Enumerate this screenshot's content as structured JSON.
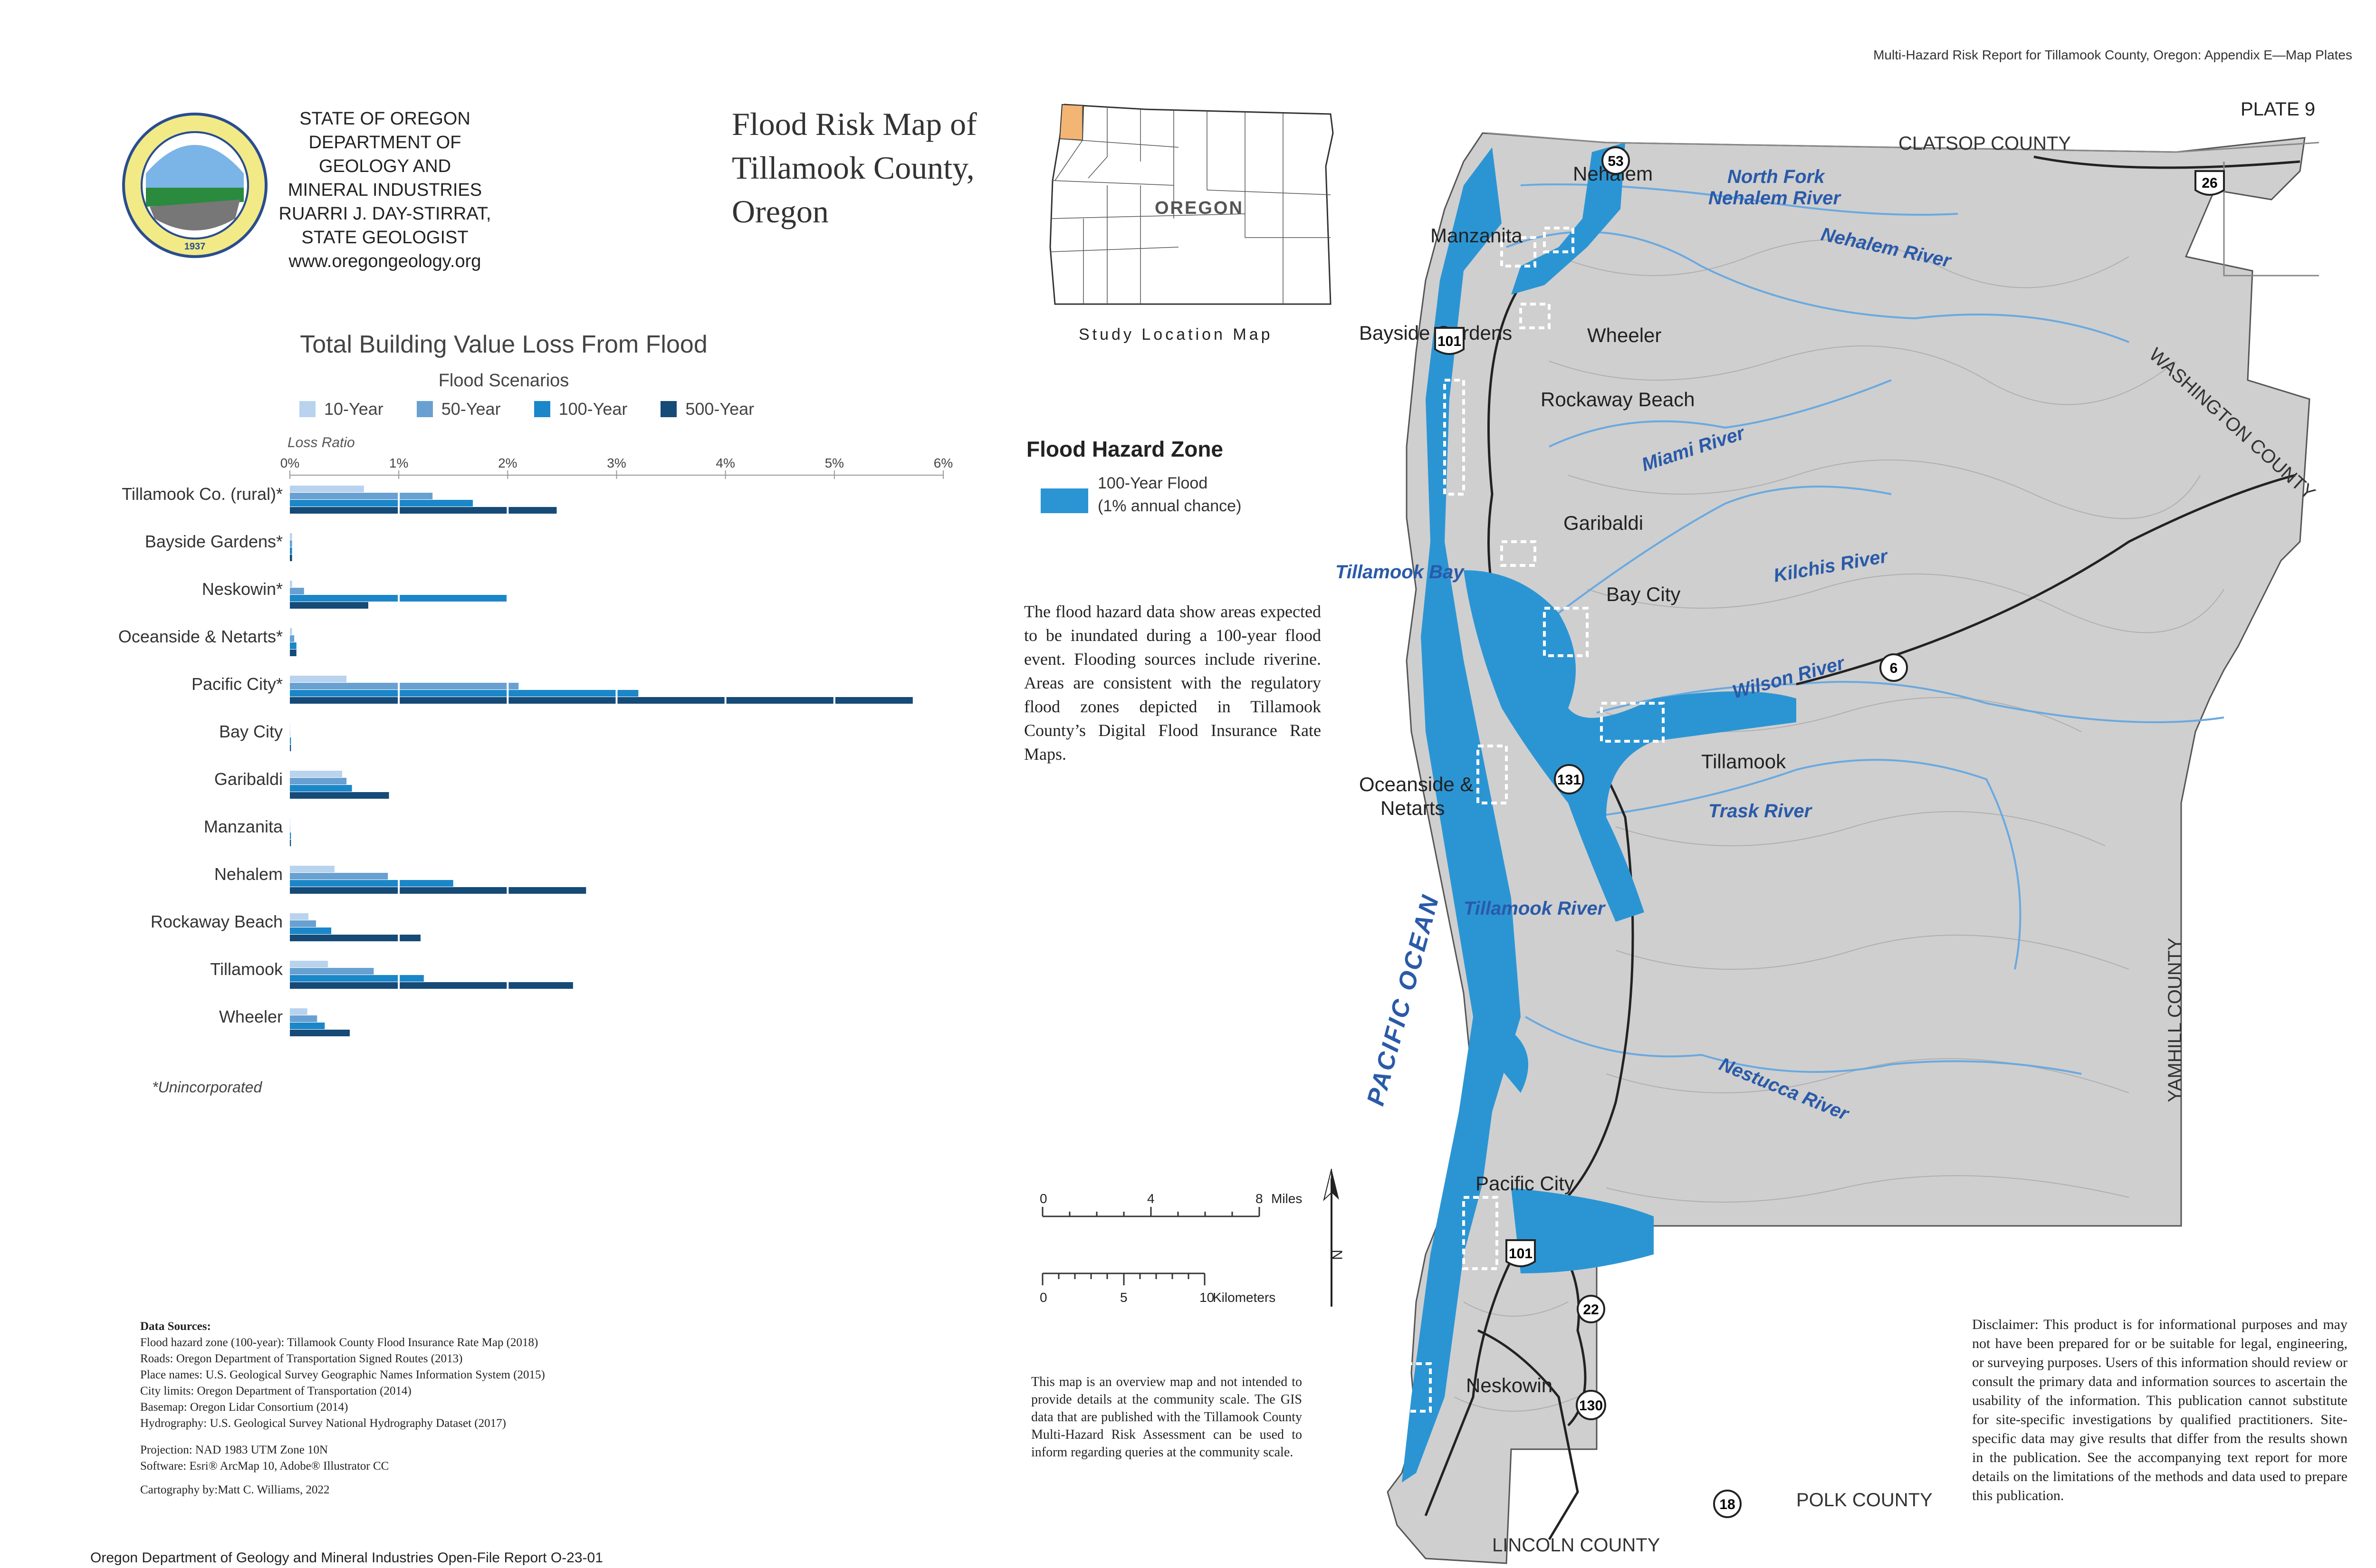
{
  "header": {
    "report_title": "Multi-Hazard Risk Report for Tillamook County, Oregon: Appendix E—Map Plates",
    "plate": "PLATE 9"
  },
  "agency": {
    "line1": "STATE OF OREGON",
    "line2": "DEPARTMENT OF GEOLOGY AND",
    "line3": "MINERAL INDUSTRIES",
    "line4": "RUARRI J. DAY-STIRRAT, STATE GEOLOGIST",
    "line5": "www.oregongeology.org",
    "seal_text": "OREGON DEPARTMENT OF GEOLOGY AND MINERAL INDUSTRIES",
    "seal_year": "1937"
  },
  "map_title": {
    "line1": "Flood Risk Map of",
    "line2": "Tillamook County,",
    "line3": "Oregon"
  },
  "study_location": {
    "state_label": "OREGON",
    "caption": "Study Location Map",
    "highlight_color": "#f3b574"
  },
  "chart_data": {
    "type": "bar",
    "orientation": "horizontal",
    "title": "Total Building Value Loss From Flood",
    "legend_title": "Flood Scenarios",
    "xlabel": "Loss Ratio",
    "x_ticks": [
      "0%",
      "1%",
      "2%",
      "3%",
      "4%",
      "5%",
      "6%"
    ],
    "xlim": [
      0,
      6
    ],
    "legend_position": "top",
    "categories": [
      "Tillamook Co. (rural)*",
      "Bayside Gardens*",
      "Neskowin*",
      "Oceanside & Netarts*",
      "Pacific City*",
      "Bay City",
      "Garibaldi",
      "Manzanita",
      "Nehalem",
      "Rockaway Beach",
      "Tillamook",
      "Wheeler"
    ],
    "series": [
      {
        "name": "10-Year",
        "color": "#b9d3ee",
        "values": [
          0.68,
          0.02,
          0.02,
          0.02,
          0.52,
          0.0,
          0.48,
          0.0,
          0.41,
          0.17,
          0.35,
          0.16
        ]
      },
      {
        "name": "50-Year",
        "color": "#68a1d1",
        "values": [
          1.31,
          0.02,
          0.13,
          0.04,
          2.1,
          0.0,
          0.52,
          0.0,
          0.9,
          0.24,
          0.77,
          0.25
        ]
      },
      {
        "name": "100-Year",
        "color": "#1b87c9",
        "values": [
          1.68,
          0.02,
          1.99,
          0.06,
          3.2,
          0.01,
          0.57,
          0.01,
          1.5,
          0.38,
          1.23,
          0.32
        ]
      },
      {
        "name": "500-Year",
        "color": "#164a77",
        "values": [
          2.45,
          0.02,
          0.72,
          0.06,
          5.72,
          0.01,
          0.91,
          0.01,
          2.72,
          1.2,
          2.6,
          0.55
        ]
      }
    ],
    "footnote": "*Unincorporated"
  },
  "flood_zone_legend": {
    "title": "Flood Hazard Zone",
    "label_line1": "100-Year Flood",
    "label_line2": "(1% annual chance)",
    "color": "#2b95d4"
  },
  "description": "The flood hazard data show areas expected to be inundated during a 100-year flood event. Flooding sources include riverine. Areas are consistent with the regulatory flood zones depicted in Tillamook County’s Digital Flood Insurance Rate Maps.",
  "scale_bar": {
    "miles_ticks": [
      "0",
      "4",
      "8"
    ],
    "miles_unit": "Miles",
    "km_ticks": [
      "0",
      "5",
      "10"
    ],
    "km_unit": "Kilometers",
    "north": "N"
  },
  "overview_note": "This map is an overview map and not intended to provide details at the community scale. The GIS data that are published with the Tillamook County Multi-Hazard Risk Assessment can be used to inform regarding queries at the community scale.",
  "disclaimer": "Disclaimer: This product is for informational purposes and may not have been prepared for or be suitable for legal, engineering, or surveying purposes. Users of this information should review or consult the primary data and information sources to ascertain the usability of the information. This publication cannot substitute for site-specific investigations by qualified practitioners. Site-specific data may give results that differ from the results shown in the publication. See the accompanying text report for more details on the limitations of the methods and data used to prepare this publication.",
  "data_sources": {
    "heading": "Data Sources:",
    "items": [
      "Flood hazard zone (100-year): Tillamook County Flood Insurance Rate Map (2018)",
      "Roads: Oregon Department of Transportation Signed Routes (2013)",
      "Place names: U.S. Geological Survey Geographic Names Information System (2015)",
      "City limits: Oregon Department of Transportation (2014)",
      "Basemap: Oregon Lidar Consortium (2014)",
      "Hydrography: U.S. Geological Survey National Hydrography Dataset (2017)"
    ],
    "projection": "Projection: NAD 1983 UTM Zone 10N",
    "software": "Software: Esri® ArcMap 10, Adobe® Illustrator CC",
    "cartography": "Cartography by:Matt C. Williams, 2022"
  },
  "footer": "Oregon Department of Geology and Mineral Industries Open-File Report O-23-01",
  "map": {
    "land_color": "#cfcfcf",
    "water_color": "#2b95d4",
    "river_color": "#6aa9e0",
    "counties": {
      "clatsop": "CLATSOP COUNTY",
      "washington": "WASHINGTON COUNTY",
      "yamhill": "YAMHILL COUNTY",
      "polk": "POLK COUNTY",
      "lincoln": "LINCOLN COUNTY"
    },
    "ocean": "PACIFIC OCEAN",
    "places": {
      "nehalem": "Nehalem",
      "manzanita": "Manzanita",
      "bayside": "Bayside Gardens",
      "wheeler": "Wheeler",
      "rockaway": "Rockaway Beach",
      "garibaldi": "Garibaldi",
      "baycity": "Bay City",
      "tillamook": "Tillamook",
      "oceanside1": "Oceanside &",
      "oceanside2": "Netarts",
      "pacificcity": "Pacific City",
      "neskowin": "Neskowin"
    },
    "water_labels": {
      "northfork1": "North Fork",
      "northfork2": "Nehalem River",
      "nehalem": "Nehalem River",
      "miami": "Miami River",
      "tillamookbay": "Tillamook Bay",
      "kilchis": "Kilchis River",
      "wilson": "Wilson River",
      "trask": "Trask River",
      "tillamookriver": "Tillamook River",
      "nestucca": "Nestucca River"
    },
    "routes": {
      "r53": "53",
      "r26": "26",
      "r101a": "101",
      "r6": "6",
      "r131": "131",
      "r101b": "101",
      "r22": "22",
      "r130": "130",
      "r18": "18"
    }
  }
}
